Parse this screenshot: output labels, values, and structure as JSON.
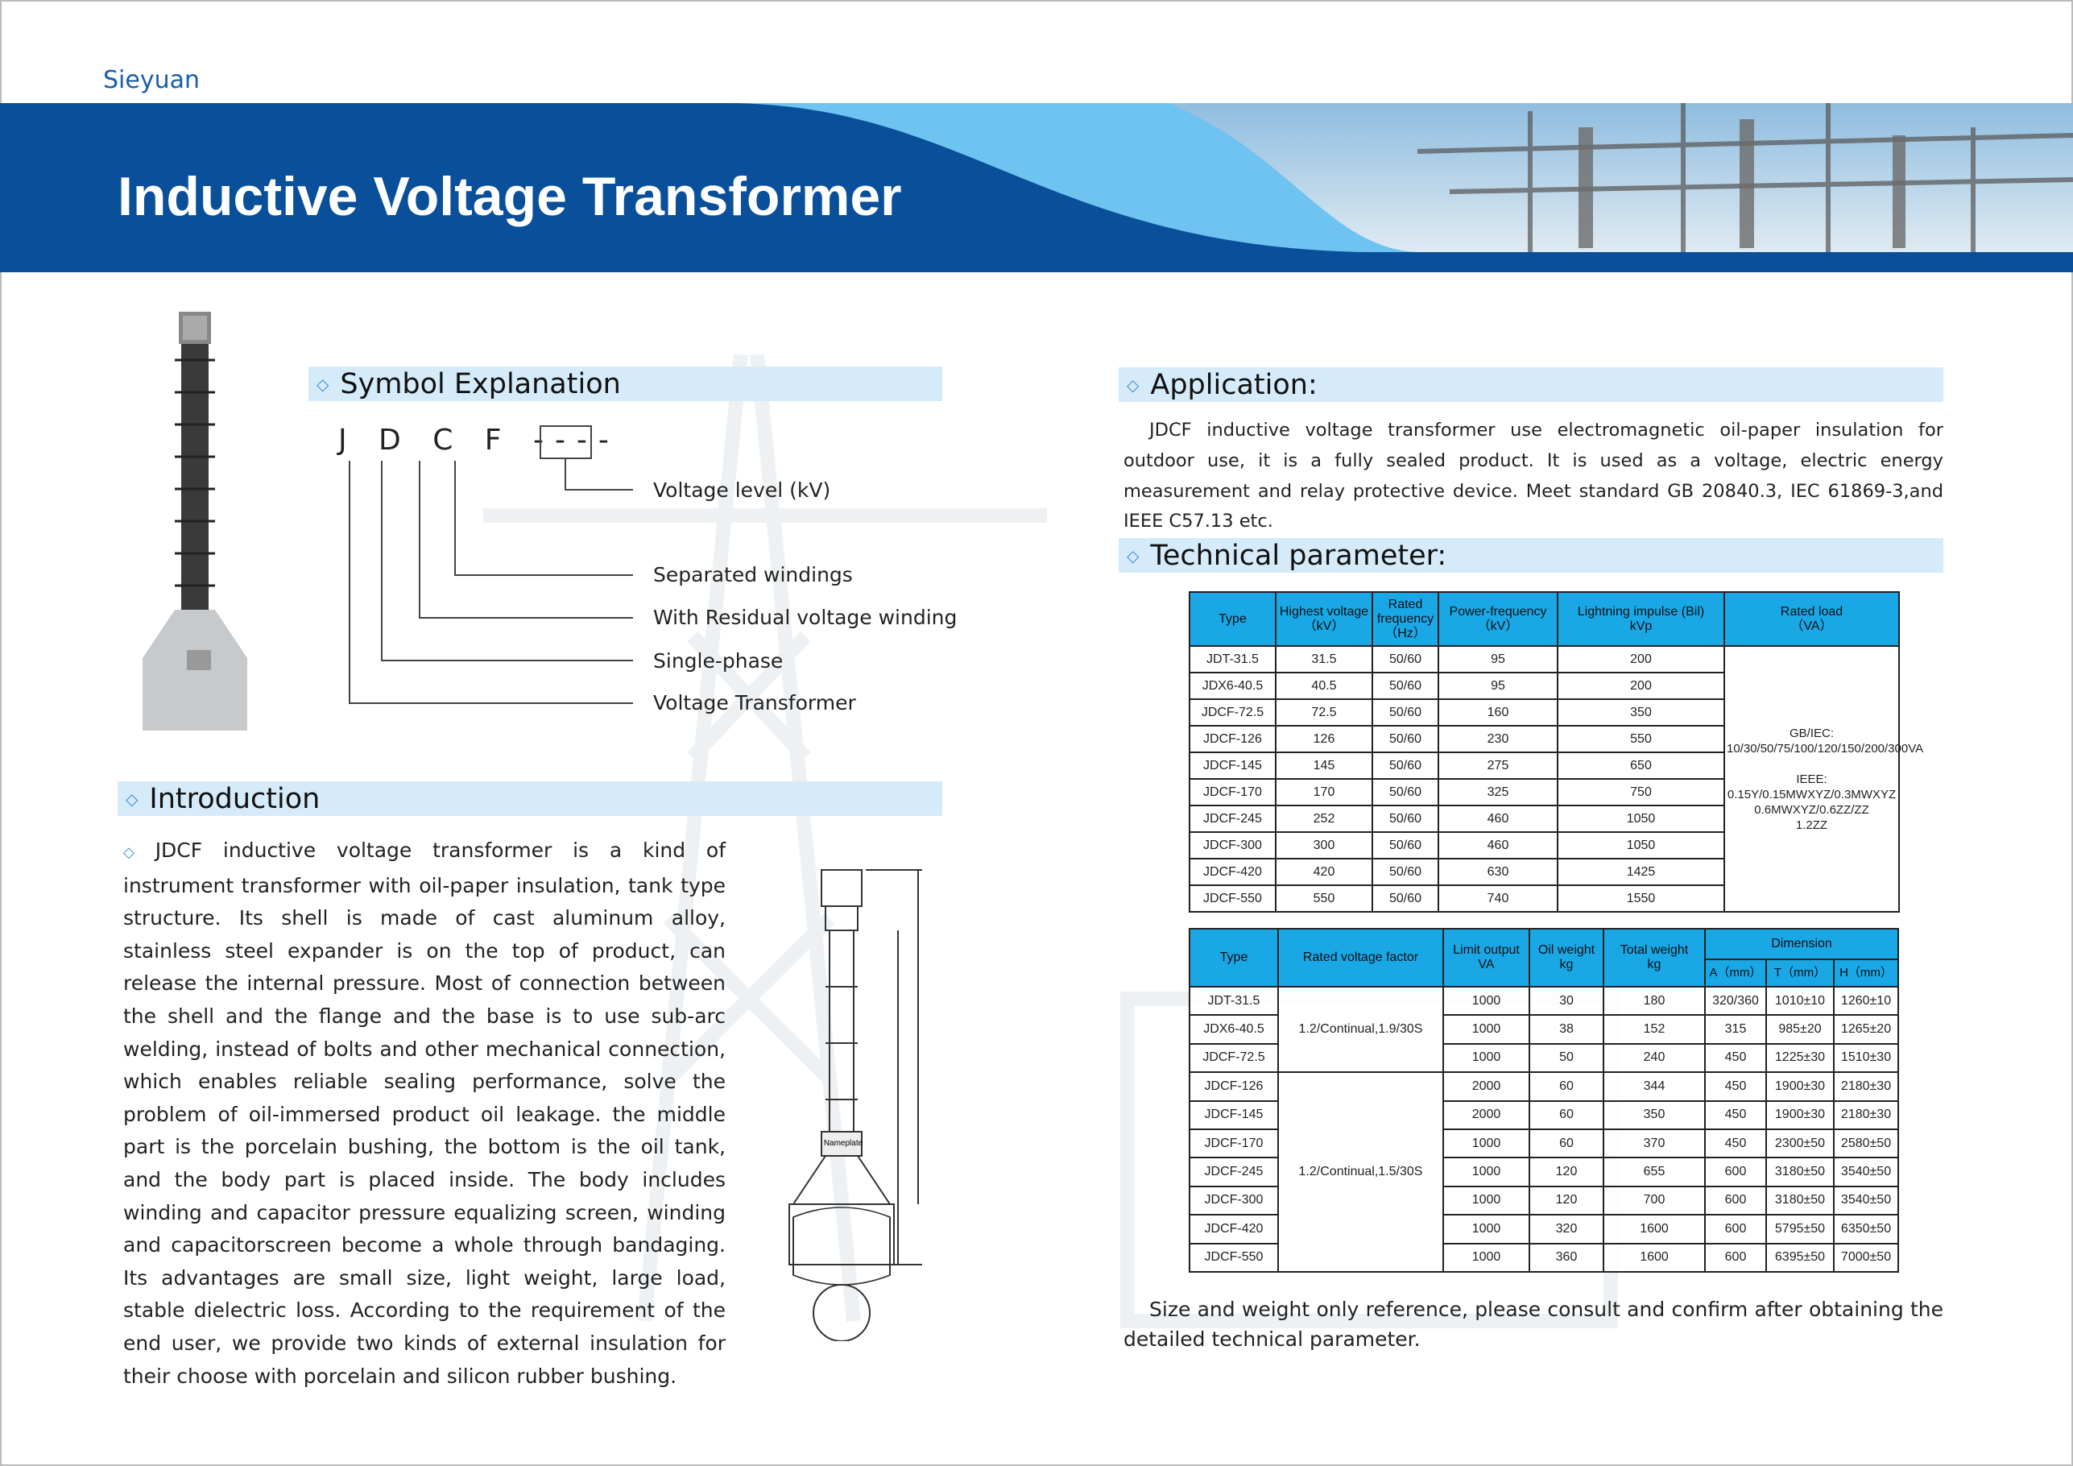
{
  "brand": "Sieyuan",
  "title": "Inductive Voltage Transformer",
  "colors": {
    "banner_dark": "#0a4f9a",
    "banner_light": "#6fc3f0",
    "section_bar": "#d6ebfa",
    "table_header": "#1aa7e6"
  },
  "symbol": {
    "heading": "Symbol Explanation",
    "code": "J D C F ----",
    "labels": [
      "Voltage level (kV)",
      "Separated windings",
      "With Residual voltage winding",
      "Single-phase",
      "Voltage Transformer"
    ]
  },
  "introduction": {
    "heading": "Introduction",
    "text": "JDCF inductive voltage transformer is a kind of instrument transformer with oil-paper insulation, tank type structure. Its shell is made of cast aluminum alloy, stainless steel expander is on the top of product, can release the internal pressure. Most of connection between the shell and the flange and the base is to use sub-arc welding, instead of bolts and other mechanical connection, which enables reliable sealing performance, solve the problem of oil-immersed product oil leakage. the middle part is the porcelain bushing, the bottom is the oil tank, and the body part is placed inside. The body includes winding and capacitor pressure equalizing screen, winding and capacitorscreen become a whole through bandaging. Its advantages are small size, light weight, large load, stable dielectric loss. According to the requirement of the end user, we provide two kinds of external insulation for their choose with porcelain and silicon rubber bushing."
  },
  "application": {
    "heading": "Application:",
    "text": "JDCF inductive voltage transformer use electromagnetic oil-paper insulation for outdoor use, it is a fully sealed product. It is used as a voltage, electric energy measurement and relay protective device.  Meet standard GB 20840.3, IEC 61869-3,and IEEE C57.13 etc."
  },
  "technical": {
    "heading": "Technical parameter:",
    "table1": {
      "headers": [
        "Type",
        "Highest voltage\n（kV）",
        "Rated\nfrequency\n（Hz）",
        "Power-frequency\n（kV）",
        "Lightning impulse (Bil)\nkVp",
        "Rated load\n（VA）"
      ],
      "rows": [
        [
          "JDT-31.5",
          "31.5",
          "50/60",
          "95",
          "200"
        ],
        [
          "JDX6-40.5",
          "40.5",
          "50/60",
          "95",
          "200"
        ],
        [
          "JDCF-72.5",
          "72.5",
          "50/60",
          "160",
          "350"
        ],
        [
          "JDCF-126",
          "126",
          "50/60",
          "230",
          "550"
        ],
        [
          "JDCF-145",
          "145",
          "50/60",
          "275",
          "650"
        ],
        [
          "JDCF-170",
          "170",
          "50/60",
          "325",
          "750"
        ],
        [
          "JDCF-245",
          "252",
          "50/60",
          "460",
          "1050"
        ],
        [
          "JDCF-300",
          "300",
          "50/60",
          "460",
          "1050"
        ],
        [
          "JDCF-420",
          "420",
          "50/60",
          "630",
          "1425"
        ],
        [
          "JDCF-550",
          "550",
          "50/60",
          "740",
          "1550"
        ]
      ],
      "rated_load": "GB/IEC:\n10/30/50/75/100/120/150/200/300VA\n\nIEEE:\n0.15Y/0.15MWXYZ/0.3MWXYZ\n0.6MWXYZ/0.6ZZ/ZZ\n1.2ZZ"
    },
    "table2": {
      "headers": [
        "Type",
        "Rated voltage factor",
        "Limit output\nVA",
        "Oil weight\nkg",
        "Total weight\nkg",
        "Dimension"
      ],
      "dimension_headers": [
        "A（mm）",
        "T（mm）",
        "H（mm）"
      ],
      "factor_groups": [
        {
          "text": "1.2/Continual,1.9/30S",
          "rows": 3
        },
        {
          "text": "1.2/Continual,1.5/30S",
          "rows": 7
        }
      ],
      "rows": [
        [
          "JDT-31.5",
          "1000",
          "30",
          "180",
          "320/360",
          "1010±10",
          "1260±10"
        ],
        [
          "JDX6-40.5",
          "1000",
          "38",
          "152",
          "315",
          "985±20",
          "1265±20"
        ],
        [
          "JDCF-72.5",
          "1000",
          "50",
          "240",
          "450",
          "1225±30",
          "1510±30"
        ],
        [
          "JDCF-126",
          "2000",
          "60",
          "344",
          "450",
          "1900±30",
          "2180±30"
        ],
        [
          "JDCF-145",
          "2000",
          "60",
          "350",
          "450",
          "1900±30",
          "2180±30"
        ],
        [
          "JDCF-170",
          "1000",
          "60",
          "370",
          "450",
          "2300±50",
          "2580±50"
        ],
        [
          "JDCF-245",
          "1000",
          "120",
          "655",
          "600",
          "3180±50",
          "3540±50"
        ],
        [
          "JDCF-300",
          "1000",
          "120",
          "700",
          "600",
          "3180±50",
          "3540±50"
        ],
        [
          "JDCF-420",
          "1000",
          "320",
          "1600",
          "600",
          "5795±50",
          "6350±50"
        ],
        [
          "JDCF-550",
          "1000",
          "360",
          "1600",
          "600",
          "6395±50",
          "7000±50"
        ]
      ]
    }
  },
  "footnote": "Size and weight only reference, please consult and confirm after obtaining the detailed technical parameter.",
  "drawing_label": "Nameplate"
}
